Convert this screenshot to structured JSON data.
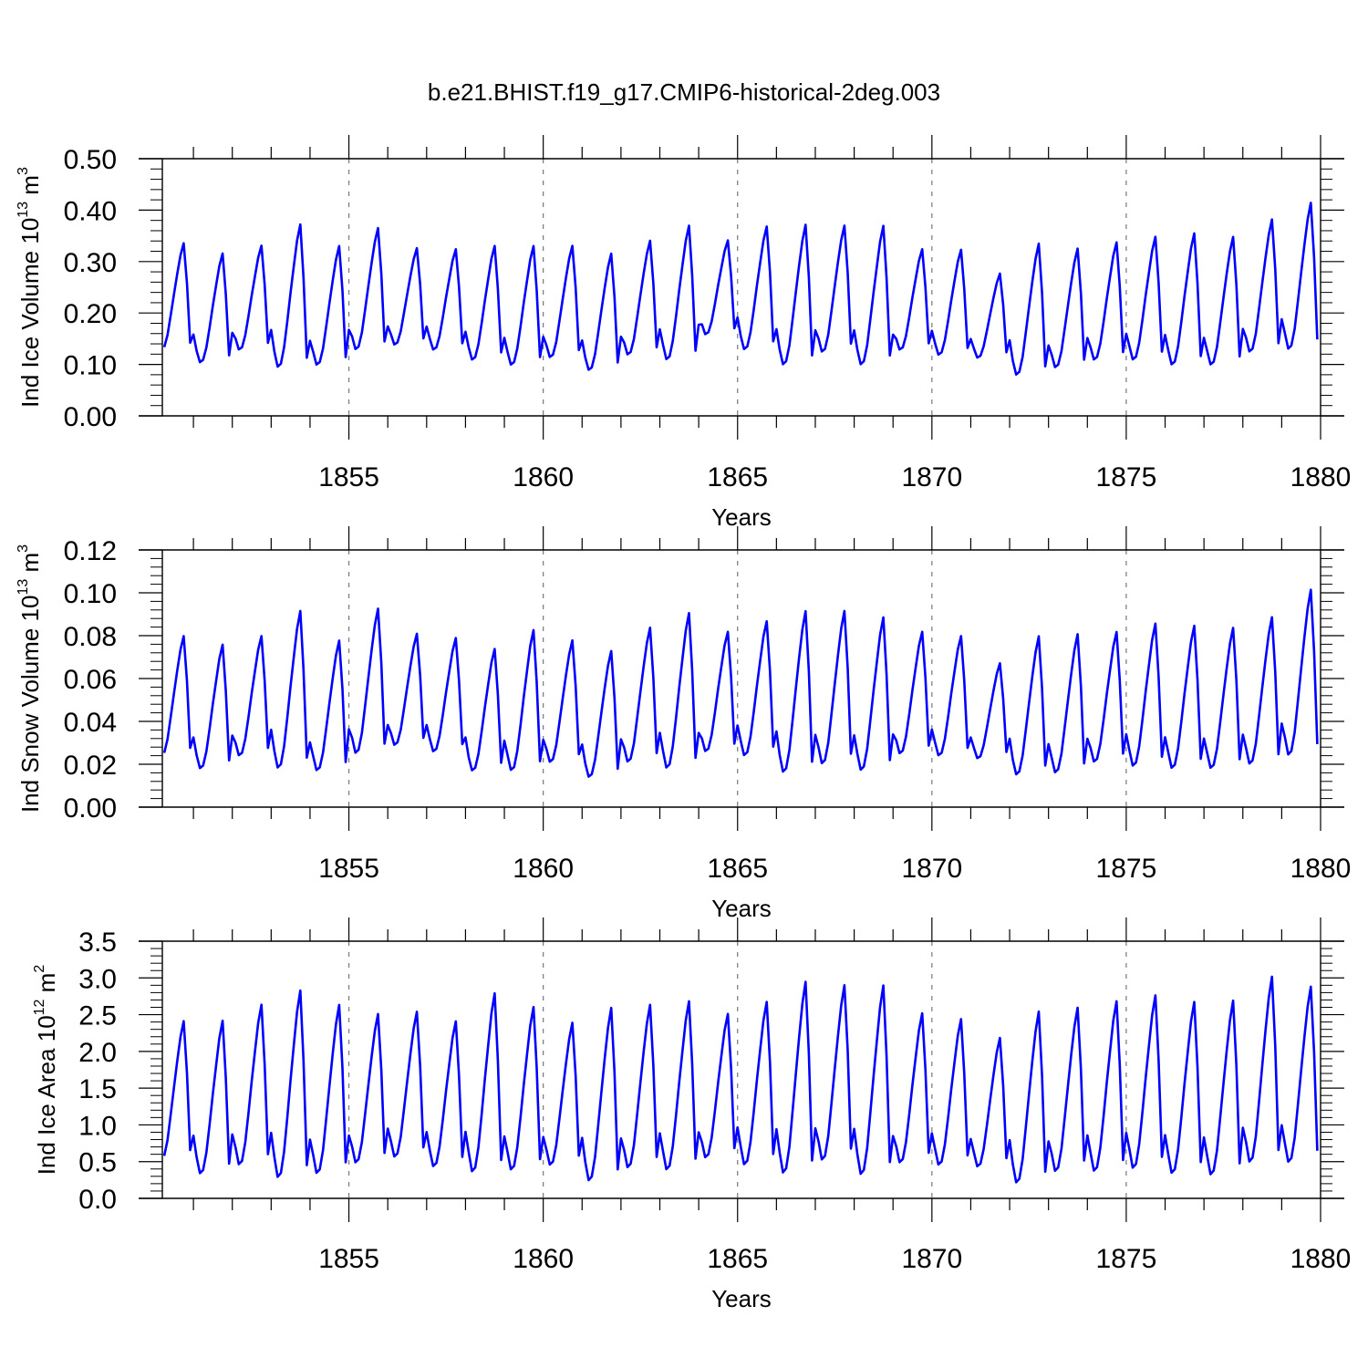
{
  "title": "b.e21.BHIST.f19_g17.CMIP6-historical-2deg.003",
  "chart_data": [
    {
      "type": "line",
      "xlabel": "Years",
      "ylabel": {
        "text": "Ind Ice Volume 10",
        "exp": "13",
        "unit": " m",
        "unit_exp": "3"
      },
      "xlim": [
        1850.2,
        1880.0
      ],
      "ylim": [
        0.0,
        0.5
      ],
      "x_ticks": [
        1855,
        1860,
        1865,
        1870,
        1875,
        1880
      ],
      "x_tick_labels": [
        "1855",
        "1860",
        "1865",
        "1870",
        "1875",
        "1880"
      ],
      "y_ticks": [
        0.0,
        0.1,
        0.2,
        0.3,
        0.4,
        0.5
      ],
      "y_tick_labels": [
        "0.00",
        "0.10",
        "0.20",
        "0.30",
        "0.40",
        "0.50"
      ],
      "series_color": "#0000ff",
      "years": [
        1850,
        1851,
        1852,
        1853,
        1854,
        1855,
        1856,
        1857,
        1858,
        1859,
        1860,
        1861,
        1862,
        1863,
        1864,
        1865,
        1866,
        1867,
        1868,
        1869,
        1870,
        1871,
        1872,
        1873,
        1874,
        1875,
        1876,
        1877,
        1878,
        1879
      ],
      "mins": [
        0.125,
        0.1,
        0.125,
        0.09,
        0.095,
        0.125,
        0.135,
        0.125,
        0.105,
        0.095,
        0.11,
        0.085,
        0.115,
        0.105,
        0.155,
        0.125,
        0.095,
        0.12,
        0.095,
        0.125,
        0.115,
        0.11,
        0.075,
        0.09,
        0.105,
        0.105,
        0.095,
        0.095,
        0.12,
        0.125
      ],
      "maxs": [
        0.34,
        0.32,
        0.335,
        0.378,
        0.335,
        0.37,
        0.33,
        0.328,
        0.335,
        0.335,
        0.335,
        0.32,
        0.345,
        0.375,
        0.345,
        0.373,
        0.377,
        0.375,
        0.375,
        0.328,
        0.327,
        0.28,
        0.34,
        0.33,
        0.342,
        0.353,
        0.36,
        0.353,
        0.387,
        0.42
      ],
      "x": [],
      "y": []
    },
    {
      "type": "line",
      "xlabel": "Years",
      "ylabel": {
        "text": "Ind Snow Volume 10",
        "exp": "13",
        "unit": " m",
        "unit_exp": "3"
      },
      "xlim": [
        1850.2,
        1880.0
      ],
      "ylim": [
        0.0,
        0.12
      ],
      "x_ticks": [
        1855,
        1860,
        1865,
        1870,
        1875,
        1880
      ],
      "x_tick_labels": [
        "1855",
        "1860",
        "1865",
        "1870",
        "1875",
        "1880"
      ],
      "y_ticks": [
        0.0,
        0.02,
        0.04,
        0.06,
        0.08,
        0.1,
        0.12
      ],
      "y_tick_labels": [
        "0.00",
        "0.02",
        "0.04",
        "0.06",
        "0.08",
        "0.10",
        "0.12"
      ],
      "series_color": "#0000ff",
      "years": [
        1850,
        1851,
        1852,
        1853,
        1854,
        1855,
        1856,
        1857,
        1858,
        1859,
        1860,
        1861,
        1862,
        1863,
        1864,
        1865,
        1866,
        1867,
        1868,
        1869,
        1870,
        1871,
        1872,
        1873,
        1874,
        1875,
        1876,
        1877,
        1878,
        1879
      ],
      "mins": [
        0.023,
        0.017,
        0.023,
        0.017,
        0.016,
        0.024,
        0.028,
        0.025,
        0.016,
        0.016,
        0.02,
        0.013,
        0.02,
        0.017,
        0.025,
        0.023,
        0.015,
        0.019,
        0.016,
        0.024,
        0.023,
        0.022,
        0.014,
        0.015,
        0.02,
        0.018,
        0.017,
        0.017,
        0.019,
        0.023
      ],
      "maxs": [
        0.081,
        0.077,
        0.081,
        0.093,
        0.079,
        0.094,
        0.082,
        0.08,
        0.075,
        0.084,
        0.079,
        0.074,
        0.085,
        0.092,
        0.083,
        0.088,
        0.093,
        0.093,
        0.09,
        0.083,
        0.081,
        0.068,
        0.081,
        0.082,
        0.083,
        0.087,
        0.086,
        0.085,
        0.09,
        0.103
      ],
      "x": [],
      "y": []
    },
    {
      "type": "line",
      "xlabel": "Years",
      "ylabel": {
        "text": "Ind Ice Area 10",
        "exp": "12",
        "unit": " m",
        "unit_exp": "2"
      },
      "xlim": [
        1850.2,
        1880.0
      ],
      "ylim": [
        0.0,
        3.5
      ],
      "x_ticks": [
        1855,
        1860,
        1865,
        1870,
        1875,
        1880
      ],
      "x_tick_labels": [
        "1855",
        "1860",
        "1865",
        "1870",
        "1875",
        "1880"
      ],
      "y_ticks": [
        0.0,
        0.5,
        1.0,
        1.5,
        2.0,
        2.5,
        3.0,
        3.5
      ],
      "y_tick_labels": [
        "0.0",
        "0.5",
        "1.0",
        "1.5",
        "2.0",
        "2.5",
        "3.0",
        "3.5"
      ],
      "series_color": "#0000ff",
      "years": [
        1850,
        1851,
        1852,
        1853,
        1854,
        1855,
        1856,
        1857,
        1858,
        1859,
        1860,
        1861,
        1862,
        1863,
        1864,
        1865,
        1866,
        1867,
        1868,
        1869,
        1870,
        1871,
        1872,
        1873,
        1874,
        1875,
        1876,
        1877,
        1878,
        1879
      ],
      "mins": [
        0.5,
        0.3,
        0.42,
        0.24,
        0.3,
        0.45,
        0.53,
        0.4,
        0.32,
        0.35,
        0.42,
        0.2,
        0.38,
        0.35,
        0.52,
        0.42,
        0.3,
        0.48,
        0.28,
        0.45,
        0.42,
        0.4,
        0.17,
        0.33,
        0.33,
        0.37,
        0.3,
        0.28,
        0.45,
        0.45
      ],
      "maxs": [
        2.45,
        2.46,
        2.68,
        2.88,
        2.68,
        2.55,
        2.58,
        2.45,
        2.84,
        2.65,
        2.43,
        2.64,
        2.68,
        2.73,
        2.55,
        2.72,
        3.0,
        2.95,
        2.95,
        2.56,
        2.48,
        2.22,
        2.59,
        2.64,
        2.73,
        2.81,
        2.72,
        2.74,
        3.07,
        2.93
      ],
      "x": [],
      "y": []
    }
  ]
}
